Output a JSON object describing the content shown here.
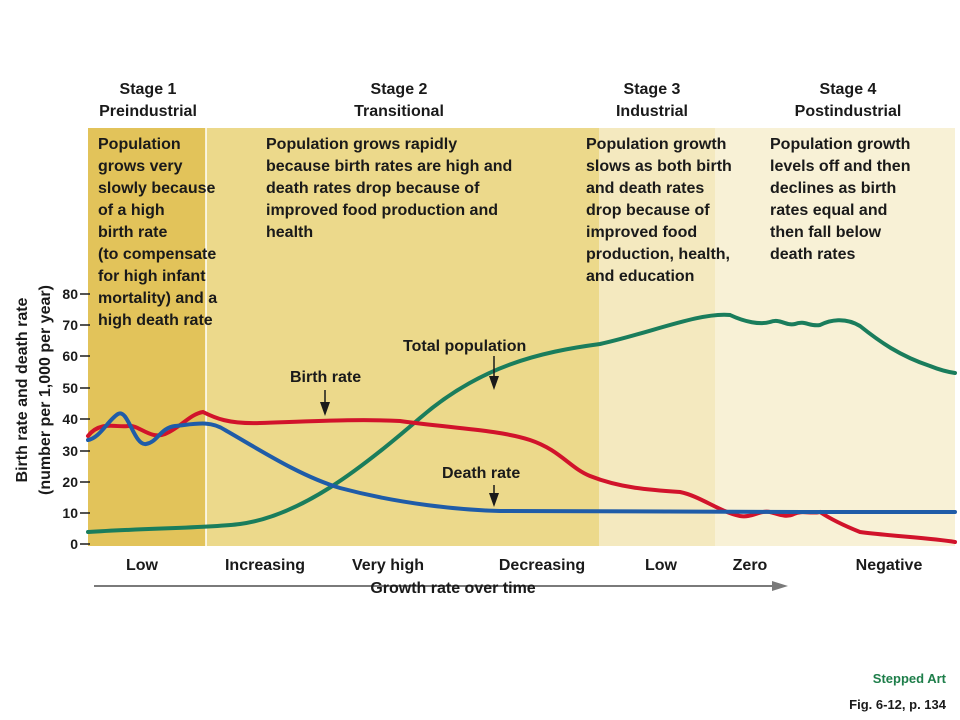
{
  "stages": [
    {
      "name": "Stage 1",
      "subtitle": "Preindustrial",
      "description": [
        "Population",
        "grows very",
        "slowly because",
        "of a high",
        "birth rate",
        "(to compensate",
        "for high infant",
        "mortality) and a",
        "high death rate"
      ]
    },
    {
      "name": "Stage 2",
      "subtitle": "Transitional",
      "description": [
        "Population grows rapidly",
        "because birth rates are high and",
        "death rates drop because of",
        "improved food production and",
        "health"
      ]
    },
    {
      "name": "Stage 3",
      "subtitle": "Industrial",
      "description": [
        "Population growth",
        "slows as both birth",
        "and death rates",
        "drop because of",
        "improved food",
        "production, health,",
        "and education"
      ]
    },
    {
      "name": "Stage 4",
      "subtitle": "Postindustrial",
      "description": [
        "Population growth",
        "levels off and then",
        "declines as birth",
        "rates equal and",
        "then fall below",
        "death rates"
      ]
    }
  ],
  "y_axis": {
    "label_line1": "Birth rate and death rate",
    "label_line2": "(number per 1,000 per year)",
    "ticks": [
      "0",
      "10",
      "20",
      "30",
      "40",
      "50",
      "60",
      "70",
      "80"
    ]
  },
  "growth_labels": [
    "Low",
    "Increasing",
    "Very high",
    "Decreasing",
    "Low",
    "Zero",
    "Negative"
  ],
  "x_axis_label": "Growth rate over time",
  "callouts": {
    "total_population": "Total population",
    "birth_rate": "Birth rate",
    "death_rate": "Death rate"
  },
  "footer": {
    "credit": "Stepped Art",
    "figure": "Fig. 6-12, p. 134"
  },
  "colors": {
    "stage1_bg": "#e2c35a",
    "stage2_bg": "#ecd98b",
    "stage3_bg": "#f4e9bf",
    "stage4_bg": "#f8f1d6",
    "birth_rate": "#d1132b",
    "death_rate": "#1f5ca8",
    "total_population": "#1a7d5c"
  }
}
